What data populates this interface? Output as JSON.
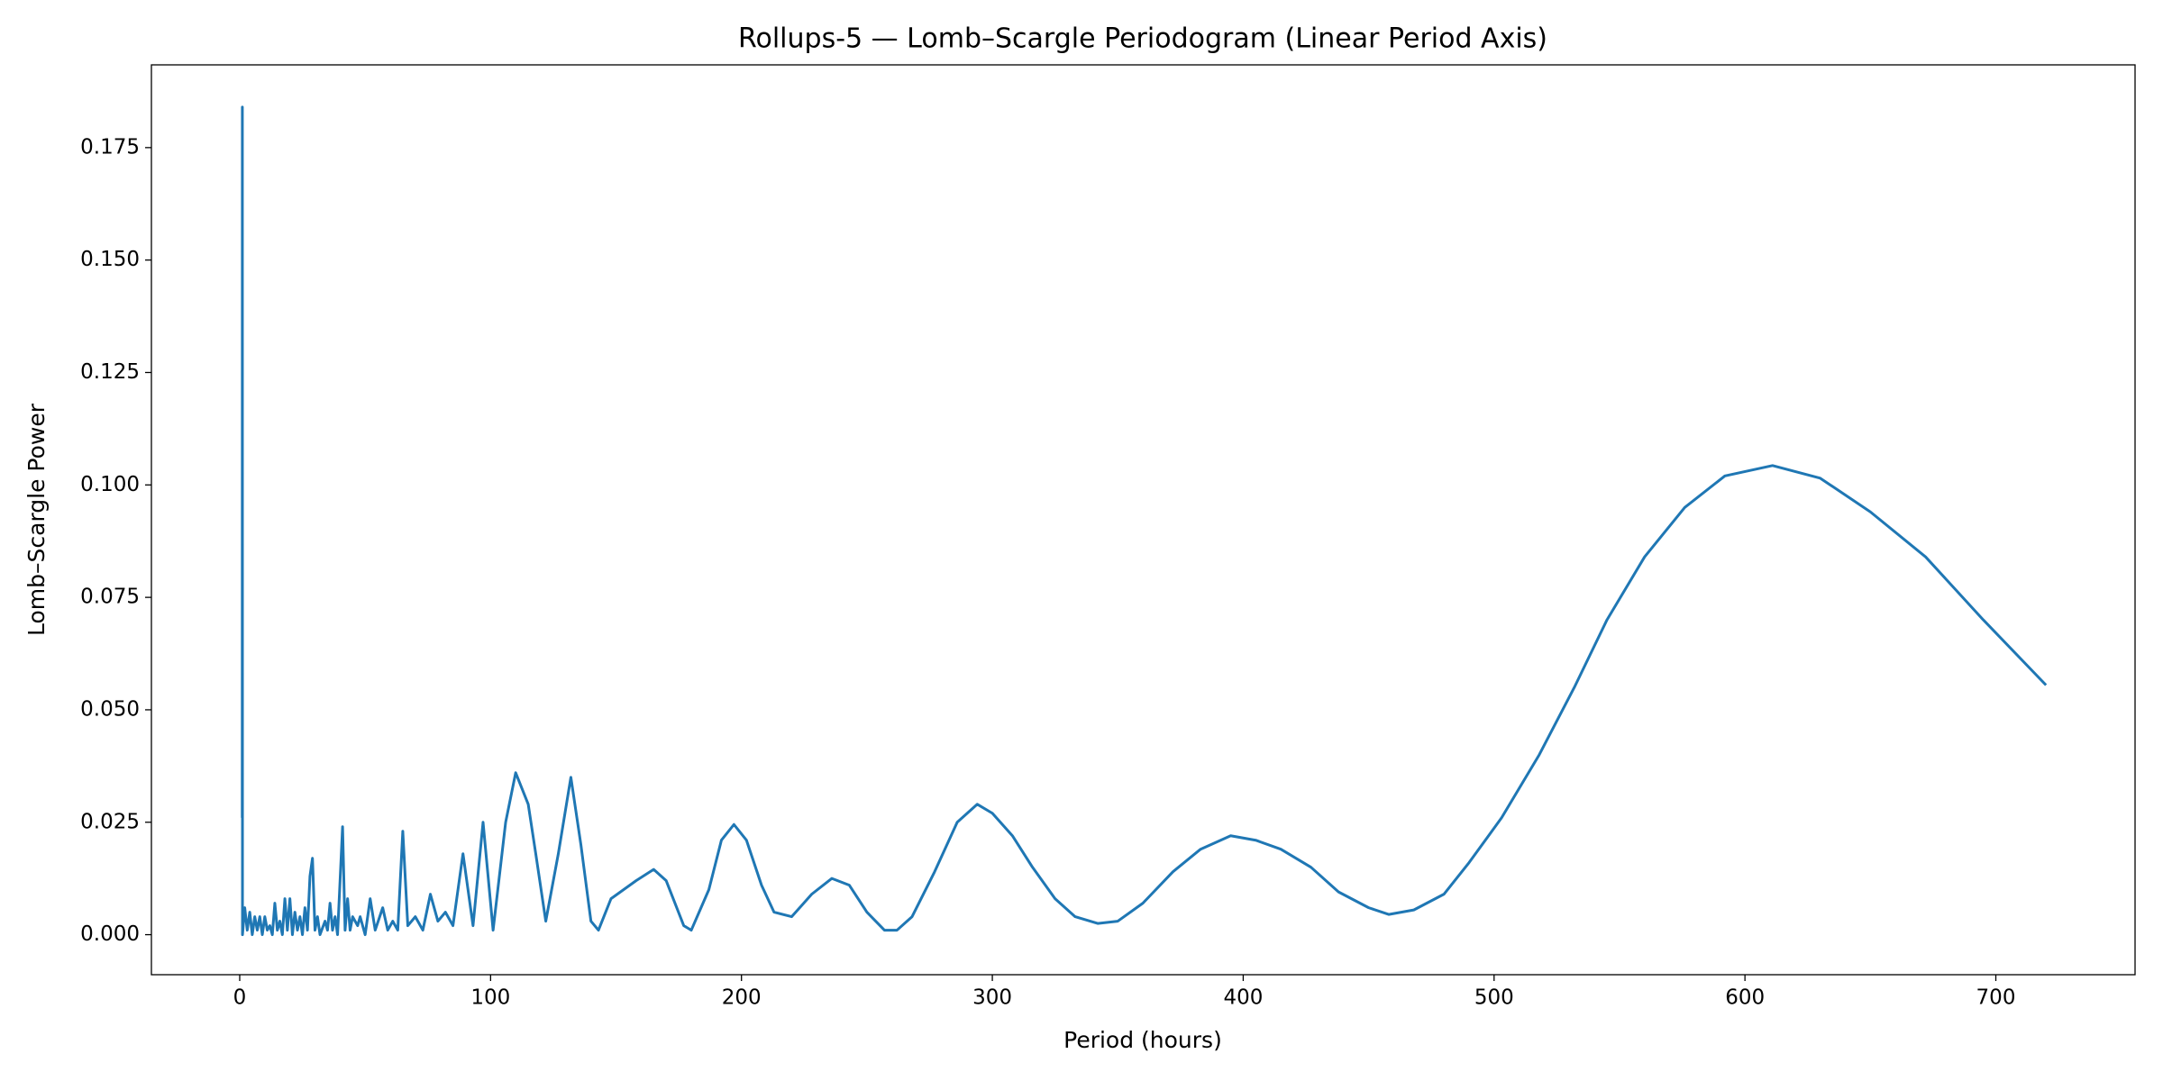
{
  "chart_data": {
    "type": "line",
    "title": "Rollups-5 — Lomb–Scargle Periodogram (Linear Period Axis)",
    "x_label": "Period (hours)",
    "y_label": "Lomb–Scargle Power",
    "series": [
      {
        "color": "#1f77b4",
        "x": [
          1.0,
          1.05,
          1.1,
          2,
          3,
          4,
          5,
          6,
          7,
          8,
          9,
          10,
          11,
          12,
          13,
          14,
          15,
          16,
          17,
          18,
          19,
          20,
          21,
          22,
          23,
          24,
          25,
          26,
          27,
          28,
          29,
          30,
          31,
          32,
          34,
          35,
          36,
          37,
          38,
          39,
          41,
          42,
          43,
          44,
          45,
          47,
          48,
          50,
          52,
          54,
          57,
          59,
          61,
          63,
          65,
          67,
          70,
          73,
          76,
          79,
          82,
          85,
          89,
          93,
          97,
          101,
          106,
          110,
          115,
          118,
          122,
          127,
          132,
          136,
          140,
          143,
          148,
          153,
          158,
          165,
          170,
          177,
          180,
          187,
          192,
          197,
          202,
          208,
          213,
          220,
          228,
          236,
          243,
          250,
          257,
          262,
          268,
          277,
          286,
          294,
          300,
          308,
          316,
          325,
          333,
          342,
          350,
          360,
          372,
          383,
          395,
          405,
          415,
          427,
          438,
          450,
          458,
          468,
          480,
          490,
          503,
          518,
          532,
          545,
          560,
          576,
          592,
          611,
          630,
          650,
          672,
          695,
          720
        ],
        "values": [
          0.026,
          0.184,
          0.0,
          0.006,
          0.001,
          0.005,
          0.0,
          0.004,
          0.001,
          0.004,
          0.0,
          0.004,
          0.001,
          0.002,
          0.0,
          0.007,
          0.001,
          0.003,
          0.0,
          0.008,
          0.001,
          0.008,
          0.0,
          0.005,
          0.001,
          0.004,
          0.0,
          0.006,
          0.001,
          0.013,
          0.017,
          0.001,
          0.004,
          0.0,
          0.003,
          0.001,
          0.007,
          0.001,
          0.004,
          0.0,
          0.024,
          0.001,
          0.008,
          0.001,
          0.004,
          0.002,
          0.004,
          0.0,
          0.008,
          0.001,
          0.006,
          0.001,
          0.003,
          0.001,
          0.023,
          0.002,
          0.004,
          0.001,
          0.009,
          0.003,
          0.005,
          0.002,
          0.018,
          0.002,
          0.025,
          0.001,
          0.025,
          0.036,
          0.029,
          0.018,
          0.003,
          0.018,
          0.035,
          0.02,
          0.003,
          0.001,
          0.008,
          0.01,
          0.012,
          0.0145,
          0.012,
          0.002,
          0.001,
          0.01,
          0.021,
          0.0245,
          0.021,
          0.011,
          0.005,
          0.004,
          0.009,
          0.0125,
          0.011,
          0.005,
          0.001,
          0.001,
          0.004,
          0.014,
          0.025,
          0.029,
          0.027,
          0.022,
          0.015,
          0.008,
          0.004,
          0.0025,
          0.003,
          0.007,
          0.014,
          0.019,
          0.022,
          0.021,
          0.019,
          0.015,
          0.0095,
          0.006,
          0.0045,
          0.0055,
          0.009,
          0.016,
          0.026,
          0.04,
          0.055,
          0.07,
          0.084,
          0.095,
          0.102,
          0.1043,
          0.1015,
          0.094,
          0.084,
          0.07,
          0.0555
        ]
      }
    ],
    "xlim": [
      -35.2,
      755.5
    ],
    "xticks": [
      0,
      100,
      200,
      300,
      400,
      500,
      600,
      700
    ],
    "ylim": [
      -0.0089,
      0.1934
    ],
    "yticks": [
      {
        "value": 0,
        "label": "0.000"
      },
      0.025,
      {
        "value": 0.05,
        "label": "0.050"
      },
      0.075,
      {
        "value": 0.1,
        "label": "0.100"
      },
      0.125,
      {
        "value": 0.15,
        "label": "0.150"
      },
      0.175
    ],
    "grid": false
  }
}
